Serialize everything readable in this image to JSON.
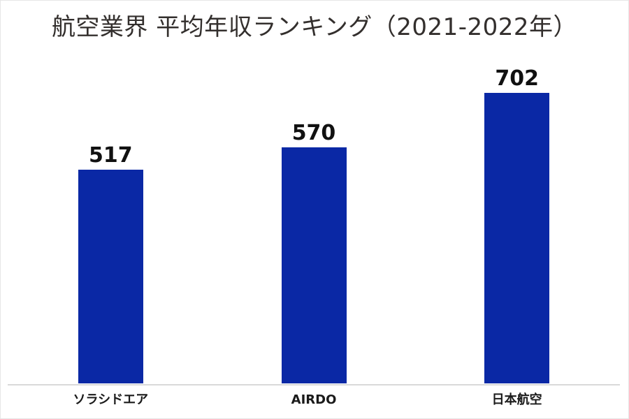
{
  "title": "航空業界 平均年収ランキング（2021-2022年）",
  "colors": {
    "bar": "#0a28a5",
    "axis_line": "#d9d9d9",
    "title_text": "#332f2d",
    "label_text": "#111111",
    "background": "#ffffff"
  },
  "chart_data": {
    "type": "bar",
    "title": "航空業界 平均年収ランキング（2021-2022年）",
    "categories": [
      "ソラシドエア",
      "AIRDO",
      "日本航空"
    ],
    "values": [
      517,
      570,
      702
    ],
    "xlabel": "",
    "ylabel": "",
    "ylim": [
      0,
      750
    ],
    "gridlines": false,
    "legend": false,
    "y_axis_visible": false,
    "value_labels_visible": true,
    "bar_color": "#0a28a5"
  },
  "bars": [
    {
      "value": "517",
      "label": "ソラシドエア"
    },
    {
      "value": "570",
      "label": "AIRDO"
    },
    {
      "value": "702",
      "label": "日本航空"
    }
  ]
}
